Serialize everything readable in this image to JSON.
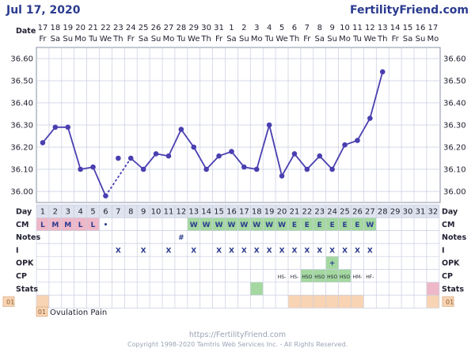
{
  "header": {
    "date": "Jul 17, 2020",
    "site": "FertilityFriend.com",
    "date_row_label": "Date"
  },
  "footer": {
    "url": "https://FertilityFriend.com",
    "copyright": "Copyright 1998-2020 Tamtris Web Services Inc. - All Rights Reserved."
  },
  "legend": {
    "code": "01",
    "text": "Ovulation Pain"
  },
  "colors": {
    "line": "#4a3fb0",
    "title": "#2b3b8f",
    "grid": "#c8cde0",
    "cm_fill": "#a4d8a0",
    "menses_fill": "#eeb8c8",
    "stats_green": "#a4d8a0",
    "stats_pink": "#eeb8c8",
    "pain_fill": "#f8d4b4",
    "header_row": "#dfe3ef"
  },
  "chart_data": {
    "type": "line",
    "y_ticks": [
      "36.60",
      "36.50",
      "36.40",
      "36.30",
      "36.20",
      "36.10",
      "36.00"
    ],
    "ylim": [
      35.95,
      36.65
    ],
    "dates": [
      "17",
      "18",
      "19",
      "20",
      "21",
      "22",
      "23",
      "24",
      "25",
      "26",
      "27",
      "28",
      "29",
      "30",
      "31",
      "1",
      "2",
      "3",
      "4",
      "5",
      "6",
      "7",
      "8",
      "9",
      "10",
      "11",
      "12",
      "13",
      "14",
      "15",
      "16",
      "17"
    ],
    "days_of_week": [
      "Fr",
      "Sa",
      "Su",
      "Mo",
      "Tu",
      "We",
      "Th",
      "Fr",
      "Sa",
      "Su",
      "Mo",
      "Tu",
      "We",
      "Th",
      "Fr",
      "Sa",
      "Su",
      "Mo",
      "Tu",
      "We",
      "Th",
      "Fr",
      "Sa",
      "Su",
      "Mo",
      "Tu",
      "We",
      "Th",
      "Fr",
      "Sa",
      "Su",
      "Mo"
    ],
    "cycle_days": [
      "1",
      "2",
      "3",
      "4",
      "5",
      "6",
      "7",
      "8",
      "9",
      "10",
      "11",
      "12",
      "13",
      "14",
      "15",
      "16",
      "17",
      "18",
      "19",
      "20",
      "21",
      "22",
      "23",
      "24",
      "25",
      "26",
      "27",
      "28",
      "29",
      "30",
      "31",
      "32"
    ],
    "temperatures": [
      36.22,
      36.29,
      36.29,
      36.1,
      36.11,
      35.98,
      36.15,
      36.15,
      36.1,
      36.17,
      36.16,
      36.28,
      36.2,
      36.1,
      36.16,
      36.18,
      36.11,
      36.1,
      36.3,
      36.07,
      36.17,
      36.1,
      36.16,
      36.1,
      36.21,
      36.23,
      36.33,
      36.54,
      null,
      null,
      null,
      null
    ],
    "dashed_segments": [
      [
        5,
        7
      ]
    ],
    "rows": {
      "Day": "Day",
      "CM": [
        "L",
        "M",
        "M",
        "L",
        "L",
        "•",
        "",
        "",
        "",
        "",
        "",
        "",
        "W",
        "W",
        "W",
        "W",
        "W",
        "W",
        "W",
        "W",
        "E",
        "E",
        "E",
        "E",
        "E",
        "E",
        "W",
        "",
        "",
        "",
        "",
        ""
      ],
      "Notes": [
        "",
        "",
        "",
        "",
        "",
        "",
        "",
        "",
        "",
        "",
        "",
        "#",
        "",
        "",
        "",
        "",
        "",
        "",
        "",
        "",
        "",
        "",
        "",
        "",
        "",
        "",
        "",
        "",
        "",
        "",
        "",
        ""
      ],
      "I": [
        "",
        "",
        "",
        "",
        "",
        "",
        "X",
        "",
        "X",
        "",
        "X",
        "",
        "X",
        "",
        "X",
        "X",
        "X",
        "X",
        "X",
        "X",
        "X",
        "X",
        "X",
        "X",
        "X",
        "X",
        "X",
        "",
        "",
        "",
        "",
        ""
      ],
      "OPK": [
        "",
        "",
        "",
        "",
        "",
        "",
        "",
        "",
        "",
        "",
        "",
        "",
        "",
        "",
        "",
        "",
        "",
        "",
        "",
        "",
        "",
        "",
        "",
        "+",
        "",
        "",
        "",
        "",
        "",
        "",
        "",
        ""
      ],
      "CP": [
        "",
        "",
        "",
        "",
        "",
        "",
        "",
        "",
        "",
        "",
        "",
        "",
        "",
        "",
        "",
        "",
        "",
        "",
        "",
        "HS-",
        "HS-",
        "HSO",
        "HSO",
        "HSO",
        "HSO",
        "HM-",
        "HF-",
        "",
        "",
        "",
        "",
        ""
      ],
      "Stats": [
        "",
        "",
        "",
        "",
        "",
        "",
        "",
        "",
        "",
        "",
        "",
        "",
        "",
        "",
        "",
        "",
        "",
        "g",
        "",
        "",
        "",
        "",
        "",
        "",
        "",
        "",
        "",
        "",
        "",
        "",
        "",
        "p"
      ],
      "Pain": [
        "01",
        "",
        "",
        "",
        "",
        "",
        "",
        "",
        "",
        "",
        "",
        "",
        "",
        "",
        "",
        "",
        "",
        "",
        "",
        "",
        "s",
        "s",
        "s",
        "s",
        "s",
        "s",
        "",
        "",
        "",
        "",
        "",
        "01"
      ]
    }
  },
  "row_labels": [
    "Day",
    "CM",
    "Notes",
    "I",
    "OPK",
    "CP",
    "Stats"
  ]
}
